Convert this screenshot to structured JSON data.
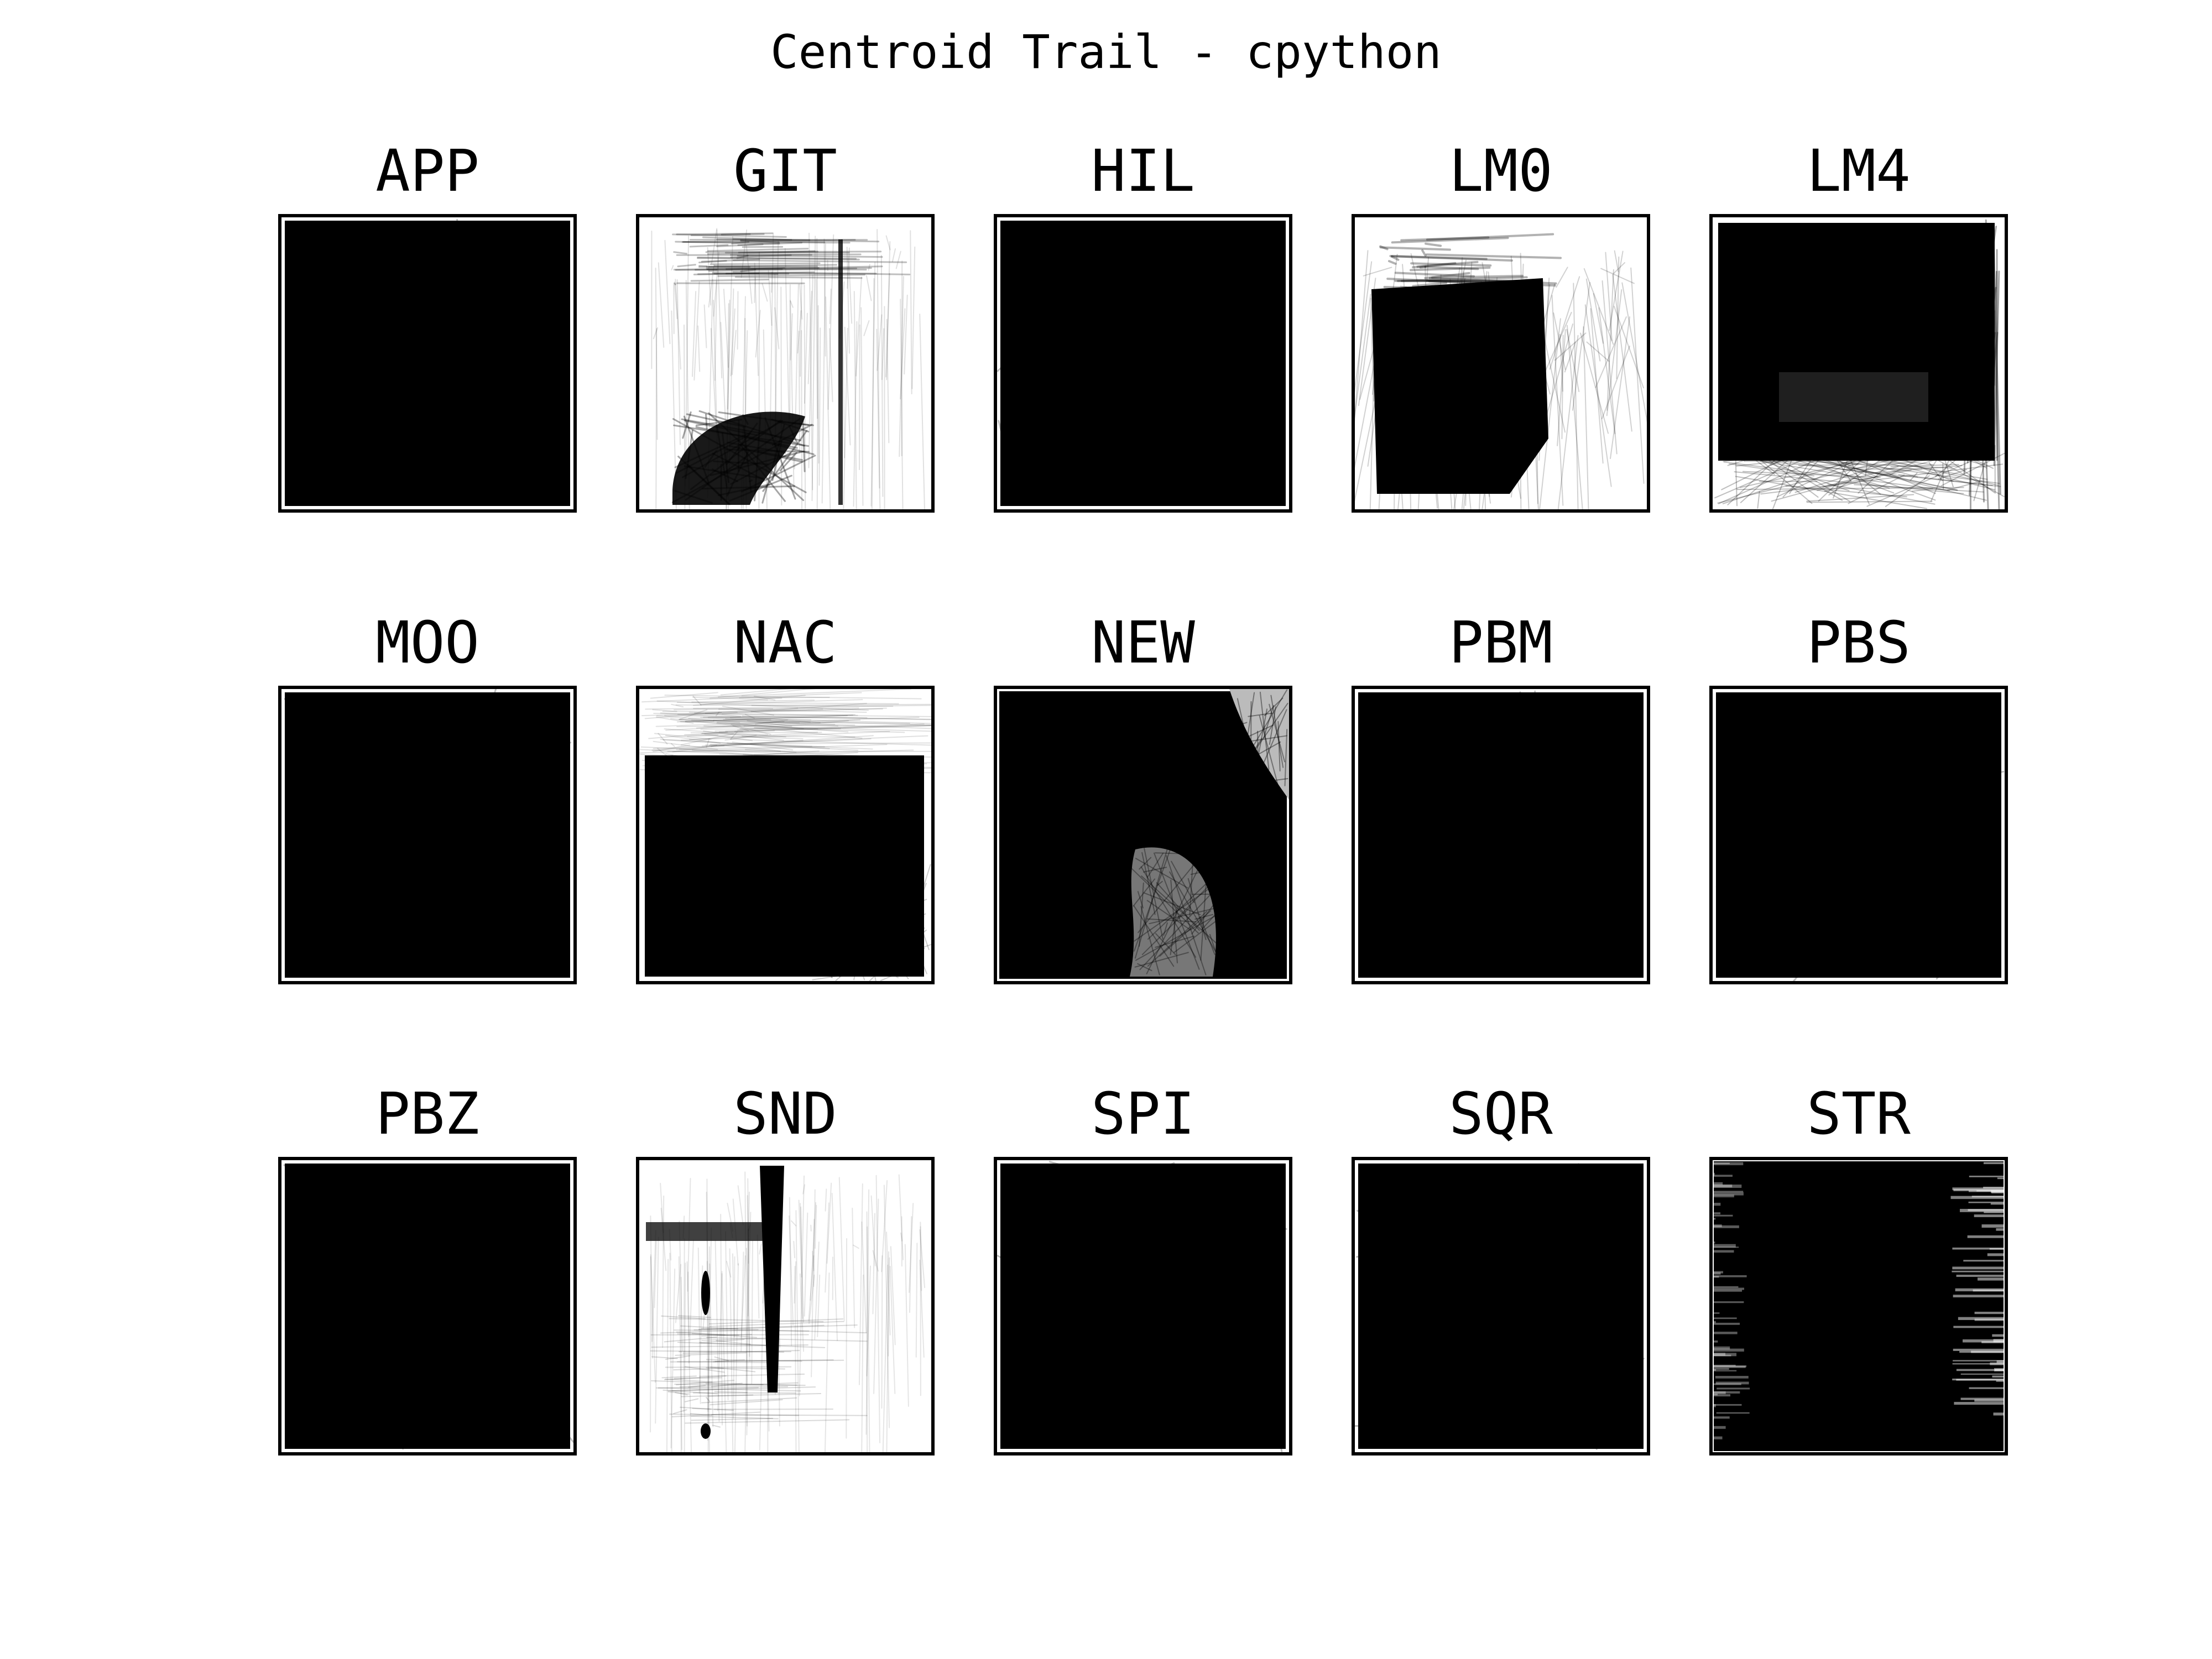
{
  "chart_data": {
    "type": "heatmap",
    "title": "Centroid Trail - cpython",
    "layout": "3x5 grid of small multiples",
    "colormap": "grayscale (white = 0, black = high density)",
    "axes_visible": false,
    "panels": [
      {
        "label": "APP",
        "pattern": "full",
        "coverage": 0.97
      },
      {
        "label": "GIT",
        "pattern": "git",
        "coverage": 0.3
      },
      {
        "label": "HIL",
        "pattern": "full",
        "coverage": 0.99
      },
      {
        "label": "LM0",
        "pattern": "lm0",
        "coverage": 0.65
      },
      {
        "label": "LM4",
        "pattern": "lm4",
        "coverage": 0.85
      },
      {
        "label": "MOO",
        "pattern": "full",
        "coverage": 0.97
      },
      {
        "label": "NAC",
        "pattern": "nac",
        "coverage": 0.75
      },
      {
        "label": "NEW",
        "pattern": "new",
        "coverage": 0.85
      },
      {
        "label": "PBM",
        "pattern": "full",
        "coverage": 0.98
      },
      {
        "label": "PBS",
        "pattern": "full",
        "coverage": 0.97
      },
      {
        "label": "PBZ",
        "pattern": "full",
        "coverage": 0.99
      },
      {
        "label": "SND",
        "pattern": "snd",
        "coverage": 0.2
      },
      {
        "label": "SPI",
        "pattern": "full",
        "coverage": 1.0
      },
      {
        "label": "SQR",
        "pattern": "full",
        "coverage": 0.98
      },
      {
        "label": "STR",
        "pattern": "str",
        "coverage": 0.93
      }
    ]
  }
}
